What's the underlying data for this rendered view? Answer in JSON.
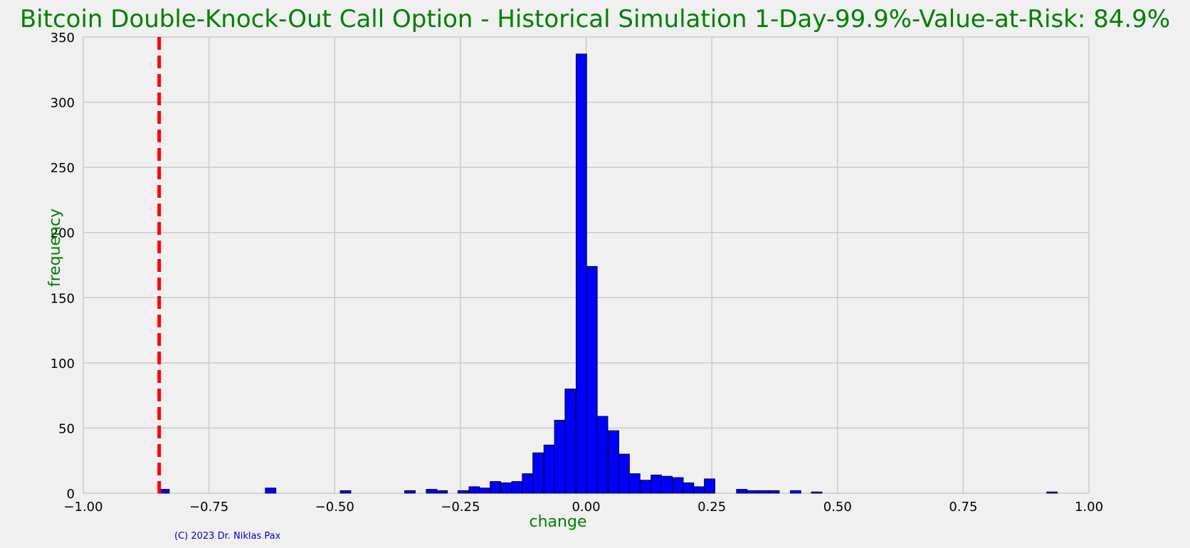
{
  "chart_data": {
    "type": "bar",
    "title": "Bitcoin Double-Knock-Out Call Option - Historical Simulation 1-Day-99.9%-Value-at-Risk: 84.9%",
    "xlabel": "change",
    "ylabel": "frequency",
    "xlim": [
      -1.0,
      1.0
    ],
    "ylim": [
      0,
      350
    ],
    "x_ticks": [
      "−1.00",
      "−0.75",
      "−0.50",
      "−0.25",
      "0.00",
      "0.25",
      "0.50",
      "0.75",
      "1.00"
    ],
    "x_tick_values": [
      -1.0,
      -0.75,
      -0.5,
      -0.25,
      0.0,
      0.25,
      0.5,
      0.75,
      1.0
    ],
    "y_ticks": [
      "0",
      "50",
      "100",
      "150",
      "200",
      "250",
      "300",
      "350"
    ],
    "y_tick_values": [
      0,
      50,
      100,
      150,
      200,
      250,
      300,
      350
    ],
    "grid": true,
    "bar_color": "#0000ff",
    "bar_edge_color": "#000000",
    "var_line": {
      "x": -0.849,
      "color": "#ff0000",
      "style": "dashed"
    },
    "bin_width": 0.02125,
    "bins": [
      {
        "x0": -0.85,
        "count": 3
      },
      {
        "x0": -0.638,
        "count": 4
      },
      {
        "x0": -0.489,
        "count": 2
      },
      {
        "x0": -0.361,
        "count": 2
      },
      {
        "x0": -0.318,
        "count": 3
      },
      {
        "x0": -0.297,
        "count": 2
      },
      {
        "x0": -0.255,
        "count": 2
      },
      {
        "x0": -0.233,
        "count": 5
      },
      {
        "x0": -0.212,
        "count": 4
      },
      {
        "x0": -0.191,
        "count": 9
      },
      {
        "x0": -0.169,
        "count": 8
      },
      {
        "x0": -0.148,
        "count": 9
      },
      {
        "x0": -0.127,
        "count": 15
      },
      {
        "x0": -0.106,
        "count": 31
      },
      {
        "x0": -0.084,
        "count": 37
      },
      {
        "x0": -0.063,
        "count": 56
      },
      {
        "x0": -0.042,
        "count": 80
      },
      {
        "x0": -0.02,
        "count": 337
      },
      {
        "x0": 0.001,
        "count": 174
      },
      {
        "x0": 0.022,
        "count": 59
      },
      {
        "x0": 0.044,
        "count": 48
      },
      {
        "x0": 0.065,
        "count": 30
      },
      {
        "x0": 0.086,
        "count": 15
      },
      {
        "x0": 0.108,
        "count": 10
      },
      {
        "x0": 0.129,
        "count": 14
      },
      {
        "x0": 0.15,
        "count": 13
      },
      {
        "x0": 0.172,
        "count": 12
      },
      {
        "x0": 0.193,
        "count": 8
      },
      {
        "x0": 0.214,
        "count": 5
      },
      {
        "x0": 0.235,
        "count": 11
      },
      {
        "x0": 0.299,
        "count": 3
      },
      {
        "x0": 0.321,
        "count": 2
      },
      {
        "x0": 0.342,
        "count": 2
      },
      {
        "x0": 0.363,
        "count": 2
      },
      {
        "x0": 0.406,
        "count": 2
      },
      {
        "x0": 0.448,
        "count": 1
      },
      {
        "x0": 0.916,
        "count": 1
      }
    ]
  },
  "footer": {
    "copyright": "(C) 2023 Dr. Niklas Pax"
  },
  "colors": {
    "background": "#f0f0f0",
    "title": "#008000",
    "axis_label": "#008000",
    "copyright": "#0000cc",
    "grid": "#cbcbcb"
  }
}
